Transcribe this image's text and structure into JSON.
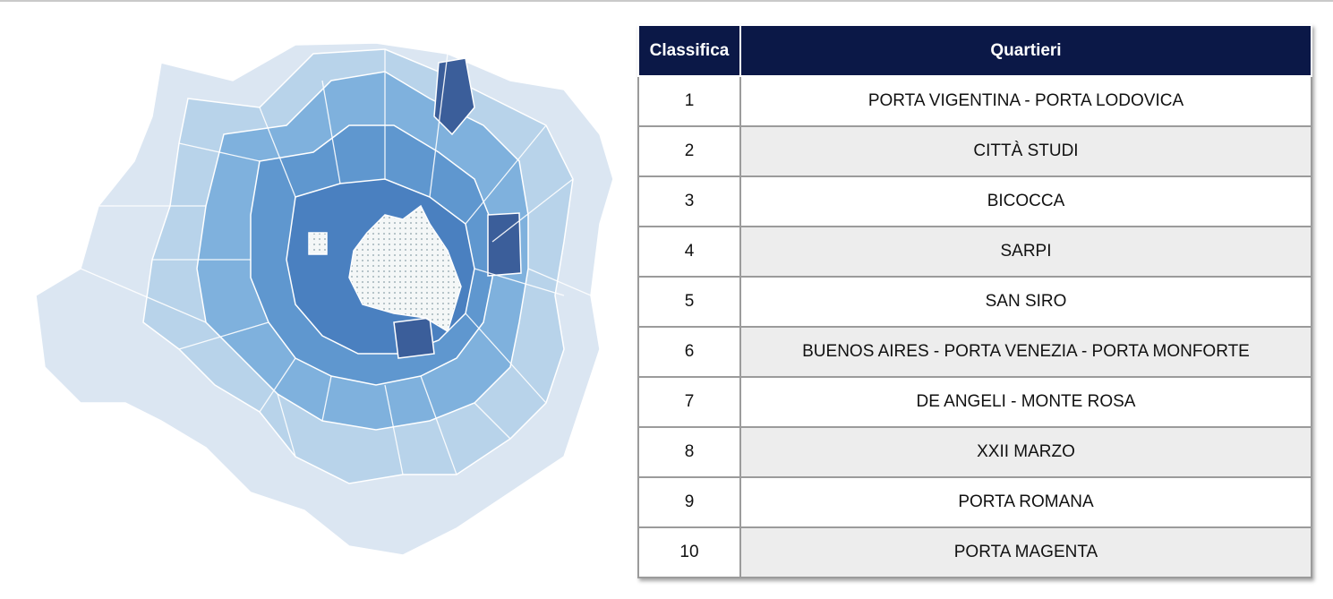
{
  "map": {
    "colors": {
      "outer": "#dbe6f2",
      "light": "#b8d3ea",
      "mid": "#7fb1dd",
      "medium": "#5f97cf",
      "strong": "#4a80c0",
      "dark": "#3b5e9a",
      "center_fill": "#f4f7f7"
    }
  },
  "table": {
    "header": {
      "rank": "Classifica",
      "district": "Quartieri"
    },
    "header_color": "#0b1847",
    "rows": [
      {
        "rank": "1",
        "name": "PORTA VIGENTINA - PORTA LODOVICA"
      },
      {
        "rank": "2",
        "name": "CITTÀ STUDI"
      },
      {
        "rank": "3",
        "name": "BICOCCA"
      },
      {
        "rank": "4",
        "name": "SARPI"
      },
      {
        "rank": "5",
        "name": "SAN SIRO"
      },
      {
        "rank": "6",
        "name": "BUENOS AIRES - PORTA VENEZIA - PORTA MONFORTE"
      },
      {
        "rank": "7",
        "name": "DE ANGELI - MONTE ROSA"
      },
      {
        "rank": "8",
        "name": "XXII MARZO"
      },
      {
        "rank": "9",
        "name": "PORTA ROMANA"
      },
      {
        "rank": "10",
        "name": "PORTA MAGENTA"
      }
    ]
  }
}
